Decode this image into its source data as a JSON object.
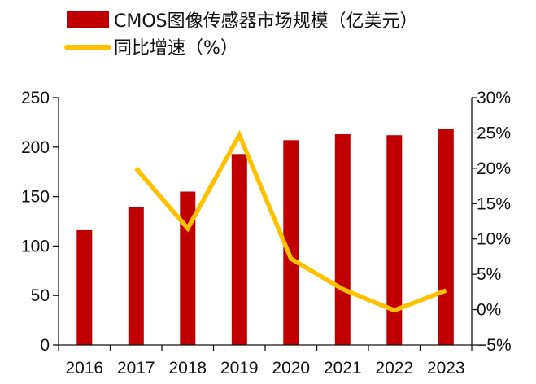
{
  "colors": {
    "bar": "#c00000",
    "line": "#ffc000",
    "axis": "#111111"
  },
  "chart_data": {
    "type": "bar",
    "title": "",
    "categories": [
      "2016",
      "2017",
      "2018",
      "2019",
      "2020",
      "2021",
      "2022",
      "2023"
    ],
    "series": [
      {
        "name": "CMOS图像传感器市场规模（亿美元）",
        "type": "bar",
        "axis": "left",
        "values": [
          116,
          139,
          155,
          193,
          207,
          213,
          212,
          218
        ]
      },
      {
        "name": "同比增速（%）",
        "type": "line",
        "axis": "right",
        "values": [
          null,
          20.0,
          11.5,
          24.7,
          7.2,
          2.9,
          -0.1,
          2.7
        ]
      }
    ],
    "y_left": {
      "lim": [
        0,
        250
      ],
      "ticks": [
        0,
        50,
        100,
        150,
        200,
        250
      ],
      "tick_labels": [
        "0",
        "50",
        "100",
        "150",
        "200",
        "250"
      ]
    },
    "y_right": {
      "lim": [
        -5,
        30
      ],
      "ticks": [
        -5,
        0,
        5,
        10,
        15,
        20,
        25,
        30
      ],
      "tick_labels": [
        "−5%",
        "0%",
        "5%",
        "10%",
        "15%",
        "20%",
        "25%",
        "30%"
      ]
    },
    "legend_position": "top-left",
    "grid": false
  }
}
